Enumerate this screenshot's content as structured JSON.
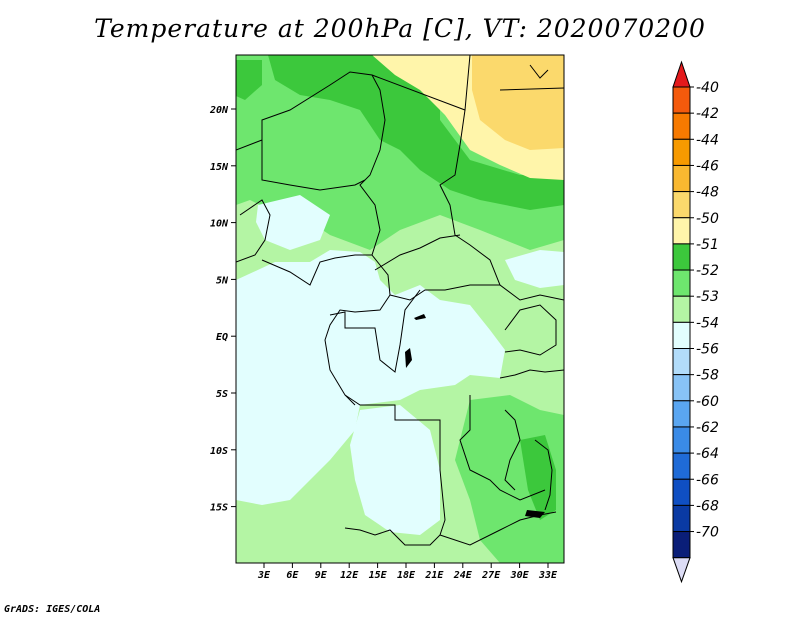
{
  "title": "Temperature at 200hPa [C], VT: 2020070200",
  "footer": "GrADS: IGES/COLA",
  "lat_labels": [
    "20N",
    "15N",
    "10N",
    "5N",
    "EQ",
    "5S",
    "10S",
    "15S"
  ],
  "lon_labels": [
    "3E",
    "6E",
    "9E",
    "12E",
    "15E",
    "18E",
    "21E",
    "24E",
    "27E",
    "30E",
    "33E"
  ],
  "colorbar": {
    "labels": [
      "-40",
      "-42",
      "-44",
      "-46",
      "-48",
      "-50",
      "-51",
      "-52",
      "-53",
      "-54",
      "-56",
      "-58",
      "-60",
      "-62",
      "-64",
      "-66",
      "-68",
      "-70"
    ],
    "colors": [
      "#e41a1c",
      "#f45a0c",
      "#f77a00",
      "#f79a00",
      "#f9b830",
      "#fbd96c",
      "#fff5aa",
      "#3cc83c",
      "#6ee66e",
      "#b4f5a4",
      "#e2fefe",
      "#b2dcfa",
      "#88c3f6",
      "#5aa6f1",
      "#3a8be7",
      "#1f6bd7",
      "#0f4fc3",
      "#0a3aa3",
      "#0a1e78",
      "#dcdcf5"
    ]
  },
  "legend_colors": {
    "land_a": "#6ee66e",
    "land_b": "#3cc83c",
    "land_c": "#b4f5a4",
    "land_d": "#e2fefe",
    "yellow_a": "#fff5aa",
    "yellow_b": "#fbd96c"
  }
}
